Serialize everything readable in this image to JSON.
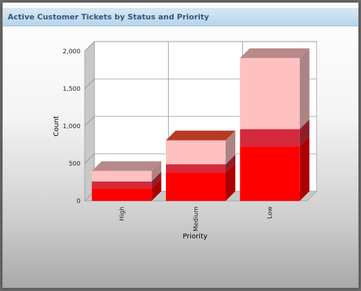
{
  "panel": {
    "title": "Active Customer Tickets by Status and Priority"
  },
  "chart_data": {
    "type": "bar",
    "stacked": true,
    "three_d": true,
    "title": "",
    "xlabel": "Priority",
    "ylabel": "Count",
    "categories": [
      "High",
      "Medium",
      "Low"
    ],
    "ylim": [
      0,
      2000
    ],
    "yticks": [
      0,
      500,
      1000,
      1500,
      2000
    ],
    "ytick_labels": [
      "0",
      "500",
      "1,000",
      "1,500",
      "2,000"
    ],
    "grid": true,
    "legend": "none",
    "series": [
      {
        "values": [
          170,
          380,
          730
        ],
        "color": "#ff0000"
      },
      {
        "values": [
          90,
          110,
          230
        ],
        "color": "#d42a3c"
      },
      {
        "values": [
          140,
          320,
          950
        ],
        "color": "#ffc0c0"
      }
    ]
  }
}
